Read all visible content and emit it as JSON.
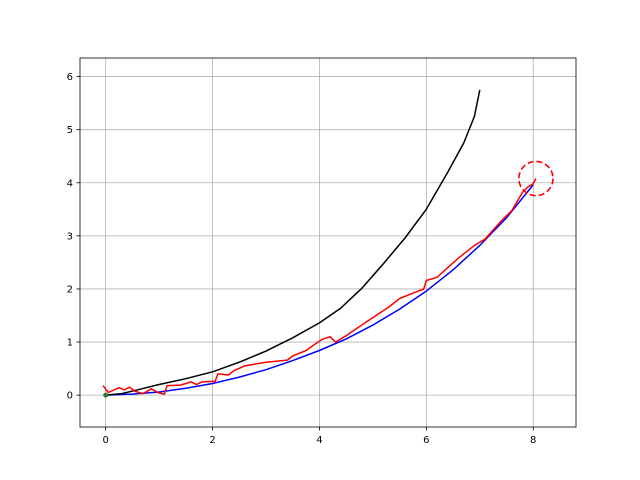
{
  "chart_data": {
    "type": "line",
    "title": "",
    "xlabel": "",
    "ylabel": "",
    "xlim": [
      -0.48,
      8.8
    ],
    "ylim": [
      -0.6,
      6.35
    ],
    "grid": true,
    "legend": "none",
    "x_ticks": [
      0,
      2,
      4,
      6,
      8
    ],
    "y_ticks": [
      0,
      1,
      2,
      3,
      4,
      5,
      6
    ],
    "x_tick_labels": [
      "0",
      "2",
      "4",
      "6",
      "8"
    ],
    "y_tick_labels": [
      "0",
      "1",
      "2",
      "3",
      "4",
      "5",
      "6"
    ],
    "series": [
      {
        "color": "#0000ff",
        "points": [
          [
            0,
            0
          ],
          [
            0.5,
            0.02
          ],
          [
            1,
            0.06
          ],
          [
            1.5,
            0.13
          ],
          [
            2,
            0.22
          ],
          [
            2.5,
            0.34
          ],
          [
            3,
            0.48
          ],
          [
            3.5,
            0.65
          ],
          [
            4,
            0.84
          ],
          [
            4.5,
            1.06
          ],
          [
            5,
            1.32
          ],
          [
            5.5,
            1.62
          ],
          [
            6,
            1.96
          ],
          [
            6.5,
            2.36
          ],
          [
            7,
            2.82
          ],
          [
            7.5,
            3.34
          ],
          [
            8,
            3.96
          ]
        ]
      },
      {
        "color": "#000000",
        "points": [
          [
            0,
            0
          ],
          [
            0.3,
            0.03
          ],
          [
            0.6,
            0.1
          ],
          [
            1,
            0.2
          ],
          [
            1.5,
            0.31
          ],
          [
            2,
            0.44
          ],
          [
            2.5,
            0.62
          ],
          [
            3,
            0.83
          ],
          [
            3.5,
            1.08
          ],
          [
            4,
            1.36
          ],
          [
            4.4,
            1.64
          ],
          [
            4.8,
            2.02
          ],
          [
            5.2,
            2.48
          ],
          [
            5.6,
            2.96
          ],
          [
            6,
            3.5
          ],
          [
            6.4,
            4.2
          ],
          [
            6.7,
            4.75
          ],
          [
            6.9,
            5.25
          ],
          [
            7,
            5.75
          ]
        ]
      },
      {
        "color": "#ff0000",
        "points": [
          [
            -0.05,
            0.18
          ],
          [
            0.05,
            0.05
          ],
          [
            0.25,
            0.14
          ],
          [
            0.35,
            0.1
          ],
          [
            0.45,
            0.15
          ],
          [
            0.55,
            0.07
          ],
          [
            0.7,
            0.03
          ],
          [
            0.85,
            0.12
          ],
          [
            1.0,
            0.04
          ],
          [
            1.1,
            0.02
          ],
          [
            1.15,
            0.18
          ],
          [
            1.4,
            0.19
          ],
          [
            1.6,
            0.25
          ],
          [
            1.7,
            0.2
          ],
          [
            1.8,
            0.25
          ],
          [
            2.05,
            0.26
          ],
          [
            2.1,
            0.4
          ],
          [
            2.3,
            0.38
          ],
          [
            2.4,
            0.46
          ],
          [
            2.6,
            0.55
          ],
          [
            3.0,
            0.62
          ],
          [
            3.4,
            0.66
          ],
          [
            3.5,
            0.74
          ],
          [
            3.75,
            0.84
          ],
          [
            3.9,
            0.95
          ],
          [
            4.05,
            1.05
          ],
          [
            4.2,
            1.1
          ],
          [
            4.3,
            1.0
          ],
          [
            4.5,
            1.12
          ],
          [
            4.7,
            1.26
          ],
          [
            5.0,
            1.46
          ],
          [
            5.3,
            1.66
          ],
          [
            5.5,
            1.82
          ],
          [
            5.8,
            1.94
          ],
          [
            5.95,
            2.0
          ],
          [
            6.0,
            2.16
          ],
          [
            6.2,
            2.22
          ],
          [
            6.4,
            2.4
          ],
          [
            6.6,
            2.58
          ],
          [
            6.9,
            2.82
          ],
          [
            7.1,
            2.94
          ],
          [
            7.4,
            3.28
          ],
          [
            7.6,
            3.48
          ],
          [
            7.8,
            3.82
          ],
          [
            7.9,
            3.92
          ],
          [
            8.0,
            3.98
          ],
          [
            8.05,
            4.08
          ]
        ]
      }
    ],
    "markers": [
      {
        "x": 0,
        "y": 0,
        "color": "#2e7d32"
      }
    ],
    "annotations": [
      {
        "shape": "dashed-circle",
        "x": 8.05,
        "y": 4.08,
        "r": 0.32,
        "color": "#ff0000"
      }
    ]
  }
}
